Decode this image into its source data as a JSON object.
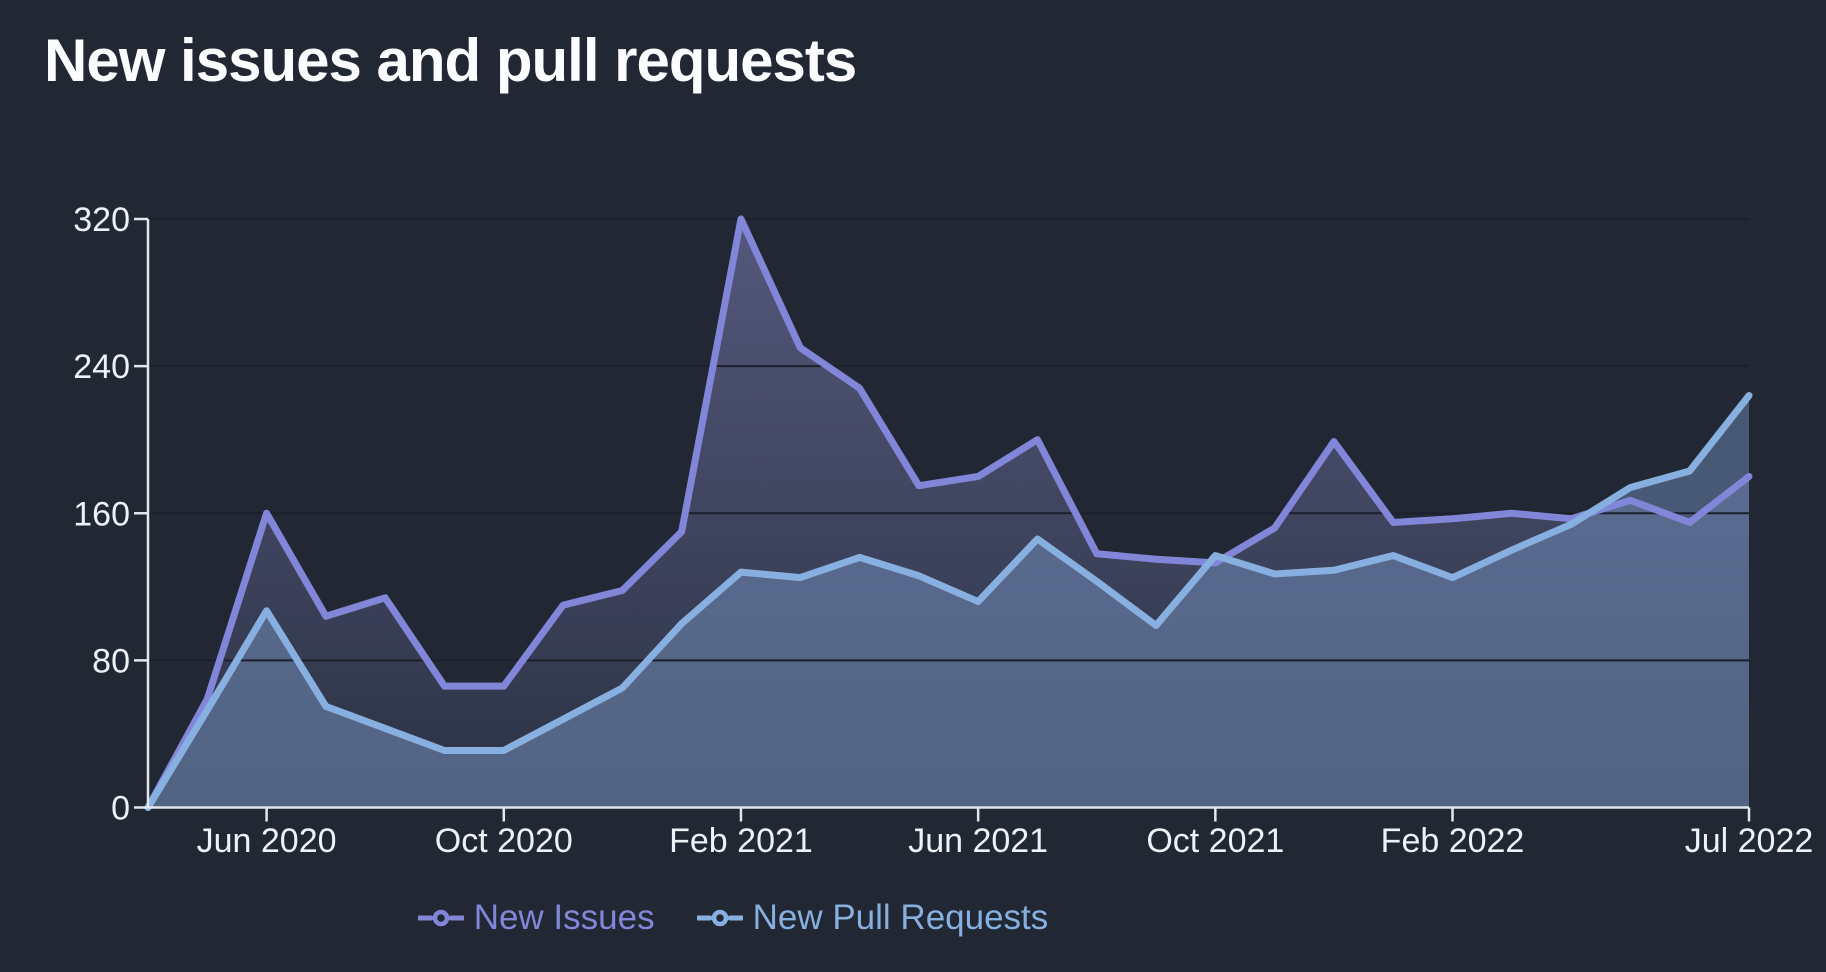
{
  "page": {
    "background": "#212834"
  },
  "title": "New issues and pull requests",
  "legend": {
    "items": [
      {
        "label": "New Issues",
        "color": "#8286d8"
      },
      {
        "label": "New Pull Requests",
        "color": "#87afdf"
      }
    ]
  },
  "chart_data": {
    "type": "area",
    "title": "New issues and pull requests",
    "x": [
      "Apr 2020",
      "May 2020",
      "Jun 2020",
      "Jul 2020",
      "Aug 2020",
      "Sep 2020",
      "Oct 2020",
      "Nov 2020",
      "Dec 2020",
      "Jan 2021",
      "Feb 2021",
      "Mar 2021",
      "Apr 2021",
      "May 2021",
      "Jun 2021",
      "Jul 2021",
      "Aug 2021",
      "Sep 2021",
      "Oct 2021",
      "Nov 2021",
      "Dec 2021",
      "Jan 2022",
      "Feb 2022",
      "Mar 2022",
      "Apr 2022",
      "May 2022",
      "Jun 2022",
      "Jul 2022"
    ],
    "series": [
      {
        "name": "New Issues",
        "color": "#8286d8",
        "fill_top": "rgba(134,136,196,0.50)",
        "fill_bottom": "rgba(134,136,196,0.10)",
        "values": [
          0,
          59,
          160,
          104,
          114,
          66,
          66,
          110,
          118,
          150,
          320,
          250,
          228,
          175,
          180,
          200,
          138,
          135,
          133,
          152,
          199,
          155,
          157,
          160,
          157,
          167,
          155,
          180
        ]
      },
      {
        "name": "New Pull Requests",
        "color": "#87afdf",
        "fill_top": "rgba(118,152,204,0.40)",
        "fill_bottom": "rgba(128,158,208,0.46)",
        "values": [
          0,
          53,
          107,
          55,
          43,
          31,
          31,
          48,
          65,
          100,
          128,
          125,
          136,
          126,
          112,
          146,
          123,
          99,
          137,
          127,
          129,
          137,
          125,
          140,
          154,
          174,
          183,
          224
        ]
      }
    ],
    "xlabel": "",
    "ylabel": "",
    "ylim": [
      0,
      320
    ],
    "y_ticks": [
      0,
      80,
      160,
      240,
      320
    ],
    "x_tick_indices": [
      2,
      6,
      10,
      14,
      18,
      22,
      27
    ],
    "x_tick_labels": [
      "Jun 2020",
      "Oct 2020",
      "Feb 2021",
      "Jun 2021",
      "Oct 2021",
      "Feb 2022",
      "Jul 2022"
    ],
    "grid": "horizontal",
    "legend_position": "bottom",
    "axis_color": "#e3e7ec",
    "grid_color": "#1a202c",
    "label_color": "#eef1f5"
  }
}
